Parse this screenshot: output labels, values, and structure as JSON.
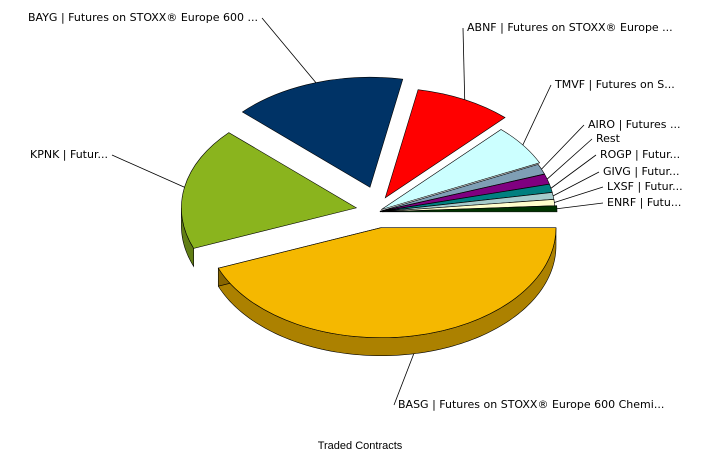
{
  "chart_data": {
    "type": "pie3d",
    "title": "Traded Contracts",
    "categories": [
      "BASG | Futures on STOXX® Europe 600 Chemi...",
      "KPNK | Futur...",
      "BAYG | Futures on STOXX® Europe 600 ...",
      "ABNF | Futures on STOXX® Europe ...",
      "TMVF | Futures on S...",
      "AIRO | Futures ...",
      "Rest",
      "ROGP | Futur...",
      "GIVG | Futur...",
      "LXSF | Futur...",
      "ENRF | Futu..."
    ],
    "values": [
      44,
      18,
      16,
      9,
      6,
      1.5,
      1.5,
      1.2,
      1,
      0.9,
      0.9
    ],
    "colors": [
      "#f5b800",
      "#8ab41e",
      "#003366",
      "#ff0000",
      "#ccffff",
      "#7f9fb5",
      "#800080",
      "#008080",
      "#a6cccc",
      "#ffffcc",
      "#003300"
    ]
  }
}
